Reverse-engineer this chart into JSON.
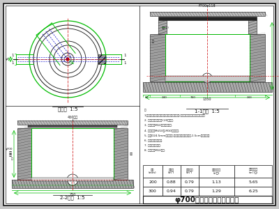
{
  "bg_color": "#c8c8c8",
  "white": "#ffffff",
  "title": "φ700圆形砷砀雨污水检查井",
  "plan_label": "平面图  1:5",
  "sec11_label": "1-1剔面  1:5",
  "sec22_label": "2-2剔面  1:5",
  "table_rows": [
    [
      "200",
      "0.88",
      "0.79",
      "1.13",
      "5.65"
    ],
    [
      "300",
      "0.94",
      "0.79",
      "1.29",
      "6.25"
    ]
  ],
  "green": "#00bb00",
  "blue": "#0000cc",
  "red": "#cc0000",
  "dark": "#111111",
  "hatch_gray": "#999999",
  "note_text": "注:\n1.本图适用于普通路面下底板式雨污水检查井,地面荷载按公路\n  二级荷载考虑。\n2. 填、封、底板使用C20混凝土.\n3. 内壁使用M10水泥砂浆抹面.\n4. 井壁使用MU10砖,M10水泥抹缝.\n5. 处理D24.5mm圆形展块,密封材料采用尽封石棉填塞封,\n   1.5cm厚度的土工密封嵴。\n6. 井筒小截面为圆形.\n7. 内壁涂防渗涂料.\n8. 抹缝使用M10水泥."
}
